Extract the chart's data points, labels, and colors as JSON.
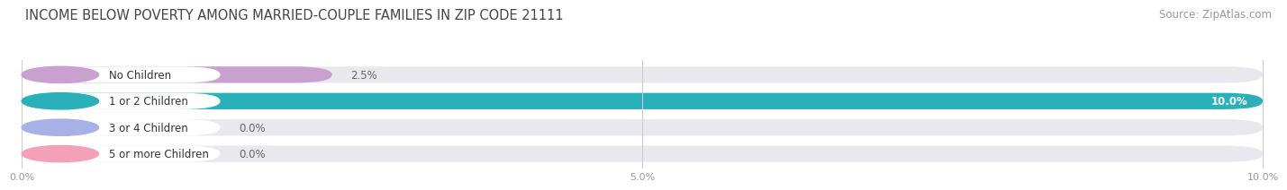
{
  "title": "INCOME BELOW POVERTY AMONG MARRIED-COUPLE FAMILIES IN ZIP CODE 21111",
  "source": "Source: ZipAtlas.com",
  "categories": [
    "No Children",
    "1 or 2 Children",
    "3 or 4 Children",
    "5 or more Children"
  ],
  "values": [
    2.5,
    10.0,
    0.0,
    0.0
  ],
  "bar_colors": [
    "#c9a0d0",
    "#2ab0b8",
    "#a8b0e8",
    "#f4a0b8"
  ],
  "track_color": "#e8e8ee",
  "xlim_max": 10.0,
  "xticks": [
    0.0,
    5.0,
    10.0
  ],
  "xticklabels": [
    "0.0%",
    "5.0%",
    "10.0%"
  ],
  "title_fontsize": 10.5,
  "source_fontsize": 8.5,
  "label_fontsize": 8.5,
  "value_fontsize": 8.5,
  "background_color": "#ffffff",
  "bar_height": 0.62,
  "value_inside_color": "#ffffff",
  "value_outside_color": "#666666",
  "label_text_color": "#333333",
  "grid_color": "#cccccc",
  "tick_color": "#999999"
}
